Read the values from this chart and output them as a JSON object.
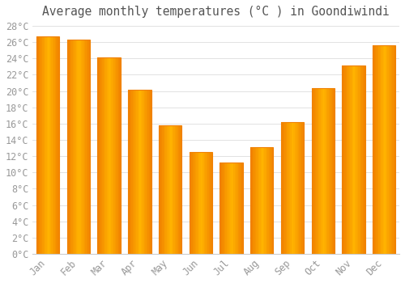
{
  "title": "Average monthly temperatures (°C ) in Goondiwindi",
  "months": [
    "Jan",
    "Feb",
    "Mar",
    "Apr",
    "May",
    "Jun",
    "Jul",
    "Aug",
    "Sep",
    "Oct",
    "Nov",
    "Dec"
  ],
  "values": [
    26.7,
    26.3,
    24.1,
    20.2,
    15.8,
    12.5,
    11.2,
    13.1,
    16.2,
    20.4,
    23.1,
    25.6
  ],
  "bar_color_center": "#FFB300",
  "bar_color_edge": "#F08000",
  "background_color": "#FFFFFF",
  "grid_color": "#DDDDDD",
  "text_color": "#999999",
  "title_color": "#555555",
  "ylim": [
    0,
    28
  ],
  "ytick_step": 2,
  "title_fontsize": 10.5,
  "tick_fontsize": 8.5,
  "bar_width": 0.75
}
